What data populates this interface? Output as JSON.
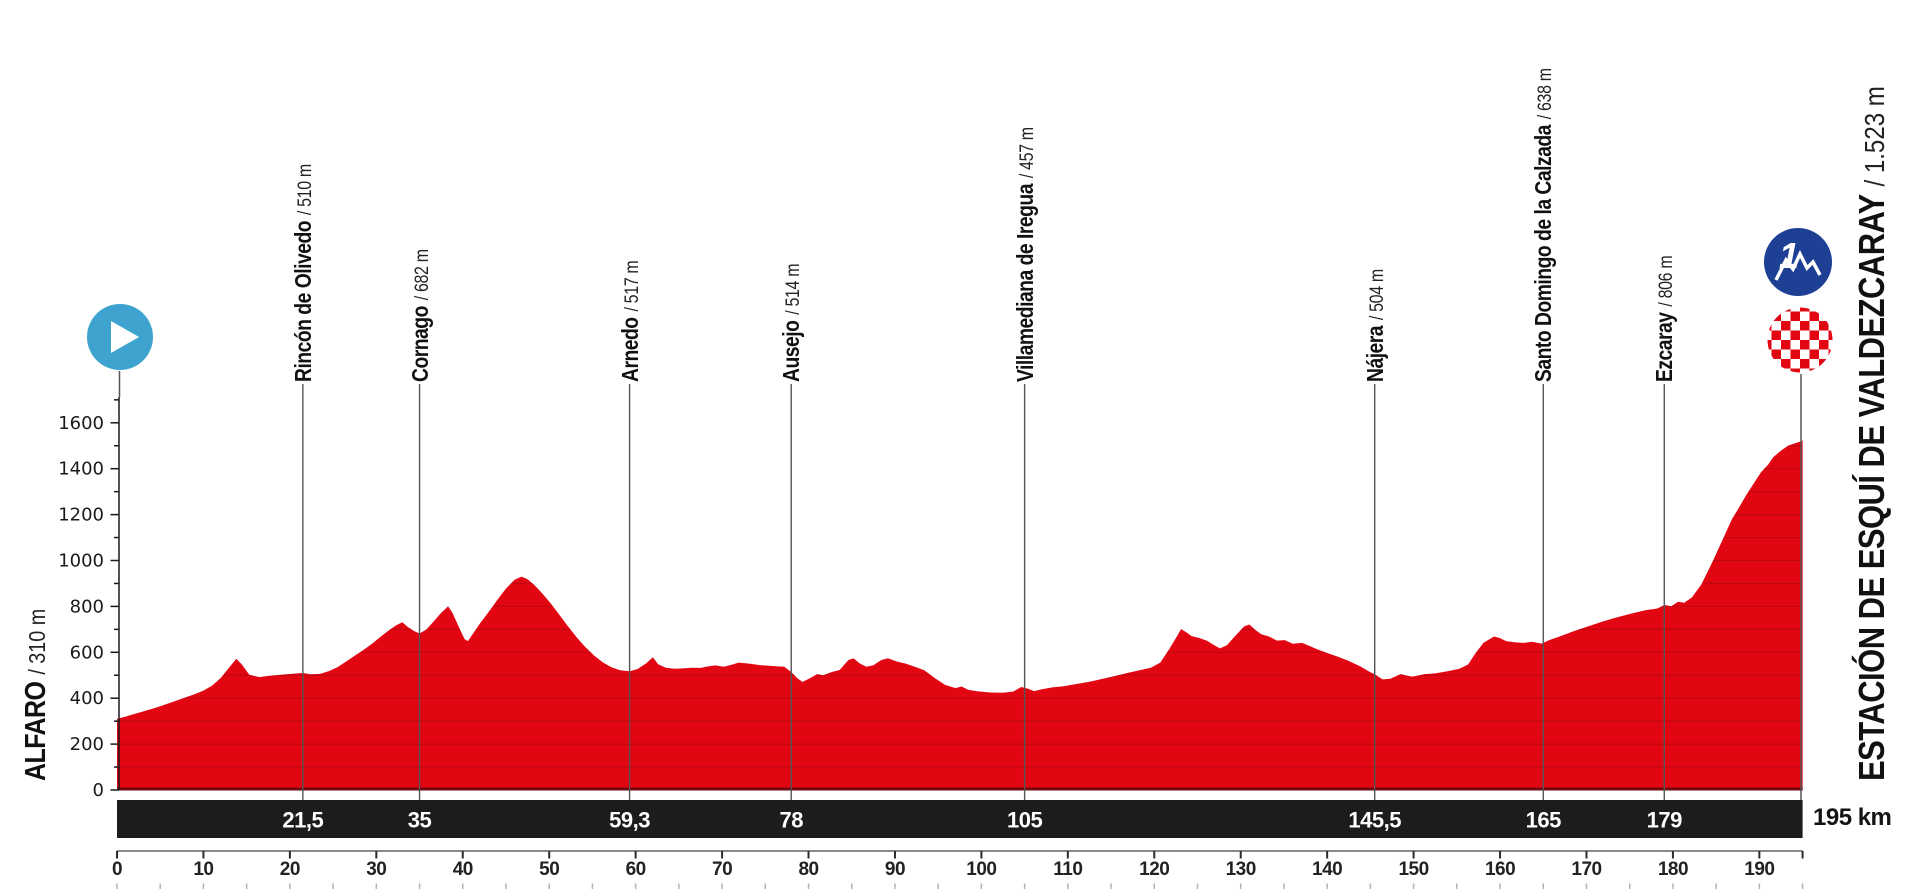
{
  "colors": {
    "profile_red": "#e20613",
    "grid_red": "#9c0712",
    "baseline_red": "#70080d",
    "bar_black": "#1d1b1b",
    "axis_gray": "#8a8a8a",
    "tick_dark": "#2b2b2b",
    "marker_line": "#555555",
    "play_blue": "#3ea4cf",
    "cat1_blue": "#1d3f94",
    "checker_red": "#e20613",
    "text_black": "#1a1a1a"
  },
  "icons": {
    "start": "play-icon",
    "climb_finish": "category-1-climb-icon",
    "finish": "finish-checkered-flag-icon"
  },
  "chart_data": {
    "type": "area",
    "title": "Stage elevation profile",
    "start_label": {
      "name": "ALFARO",
      "altitude": "/ 310 m"
    },
    "finish_label": {
      "name": "ESTACIÓN DE ESQUÍ DE VALDEZCARAY",
      "altitude": "/ 1.523 m"
    },
    "total_distance_label": "195 km",
    "climb_category": "1",
    "xlabel": "",
    "ylabel": "",
    "xlim": [
      0,
      195
    ],
    "ylim": [
      0,
      1700
    ],
    "grid": "horizontal-100m-inside-fill",
    "legend_position": "none",
    "x_tick_labels": [
      "0",
      "10",
      "20",
      "30",
      "40",
      "50",
      "60",
      "70",
      "80",
      "90",
      "100",
      "110",
      "120",
      "130",
      "140",
      "150",
      "160",
      "170",
      "180",
      "190"
    ],
    "y_tick_labels": [
      "0",
      "200",
      "400",
      "600",
      "800",
      "1000",
      "1200",
      "1400",
      "1600"
    ],
    "y_minor_interval": 100,
    "x_bottom_minor_interval": 5,
    "waypoints": [
      {
        "name": "Rincón de Olivedo",
        "altitude": "/ 510 m",
        "km": 21.5,
        "km_label": "21,5"
      },
      {
        "name": "Cornago",
        "altitude": "/ 682 m",
        "km": 35,
        "km_label": "35"
      },
      {
        "name": "Arnedo",
        "altitude": "/ 517 m",
        "km": 59.3,
        "km_label": "59,3"
      },
      {
        "name": "Ausejo",
        "altitude": "/ 514 m",
        "km": 78,
        "km_label": "78"
      },
      {
        "name": "Villamediana de Iregua",
        "altitude": "/ 457 m",
        "km": 105,
        "km_label": "105"
      },
      {
        "name": "Nájera",
        "altitude": "/ 504 m",
        "km": 145.5,
        "km_label": "145,5"
      },
      {
        "name": "Santo Domingo de la Calzada",
        "altitude": "/ 638 m",
        "km": 165,
        "km_label": "165"
      },
      {
        "name": "Ezcaray",
        "altitude": "/ 806 m",
        "km": 179,
        "km_label": "179"
      }
    ],
    "profile_points": [
      [
        0,
        310
      ],
      [
        1,
        320
      ],
      [
        2,
        331
      ],
      [
        3,
        342
      ],
      [
        4,
        353
      ],
      [
        5,
        365
      ],
      [
        6,
        378
      ],
      [
        7,
        391
      ],
      [
        8,
        405
      ],
      [
        9,
        418
      ],
      [
        10,
        433
      ],
      [
        11,
        455
      ],
      [
        12,
        488
      ],
      [
        13,
        535
      ],
      [
        13.8,
        572
      ],
      [
        14.4,
        549
      ],
      [
        15.3,
        502
      ],
      [
        16.5,
        492
      ],
      [
        17.5,
        497
      ],
      [
        19,
        502
      ],
      [
        20.5,
        507
      ],
      [
        21.5,
        510
      ],
      [
        22.4,
        504
      ],
      [
        23.5,
        506
      ],
      [
        24.5,
        518
      ],
      [
        25.5,
        535
      ],
      [
        26.5,
        560
      ],
      [
        27.5,
        585
      ],
      [
        28.5,
        610
      ],
      [
        29.5,
        637
      ],
      [
        30.5,
        668
      ],
      [
        31.5,
        697
      ],
      [
        32.3,
        718
      ],
      [
        33,
        731
      ],
      [
        33.6,
        712
      ],
      [
        34.3,
        694
      ],
      [
        35,
        682
      ],
      [
        35.8,
        700
      ],
      [
        36.6,
        733
      ],
      [
        37.4,
        768
      ],
      [
        38.3,
        801
      ],
      [
        38.8,
        772
      ],
      [
        39.4,
        722
      ],
      [
        40.2,
        658
      ],
      [
        40.6,
        649
      ],
      [
        41.2,
        682
      ],
      [
        42,
        726
      ],
      [
        43,
        776
      ],
      [
        44,
        828
      ],
      [
        45,
        878
      ],
      [
        46,
        916
      ],
      [
        46.8,
        930
      ],
      [
        47.5,
        918
      ],
      [
        48.3,
        893
      ],
      [
        49.2,
        856
      ],
      [
        50.2,
        812
      ],
      [
        51.2,
        762
      ],
      [
        52.2,
        712
      ],
      [
        53.2,
        664
      ],
      [
        54.2,
        622
      ],
      [
        55.2,
        586
      ],
      [
        56.2,
        556
      ],
      [
        57.2,
        535
      ],
      [
        58.2,
        522
      ],
      [
        59.3,
        517
      ],
      [
        60.2,
        527
      ],
      [
        61.2,
        551
      ],
      [
        62,
        578
      ],
      [
        62.6,
        548
      ],
      [
        63.5,
        533
      ],
      [
        64.5,
        528
      ],
      [
        65.5,
        530
      ],
      [
        66.5,
        533
      ],
      [
        67.5,
        532
      ],
      [
        68.3,
        538
      ],
      [
        69.2,
        543
      ],
      [
        70.2,
        537
      ],
      [
        71.2,
        547
      ],
      [
        71.9,
        555
      ],
      [
        73,
        551
      ],
      [
        74.5,
        544
      ],
      [
        76,
        540
      ],
      [
        77.2,
        537
      ],
      [
        78,
        514
      ],
      [
        78.7,
        487
      ],
      [
        79.3,
        471
      ],
      [
        80.1,
        486
      ],
      [
        81,
        505
      ],
      [
        81.7,
        500
      ],
      [
        82.7,
        514
      ],
      [
        83.6,
        523
      ],
      [
        84.6,
        566
      ],
      [
        85.2,
        574
      ],
      [
        85.9,
        552
      ],
      [
        86.7,
        537
      ],
      [
        87.5,
        544
      ],
      [
        88.4,
        566
      ],
      [
        89.2,
        574
      ],
      [
        90.2,
        560
      ],
      [
        91.2,
        551
      ],
      [
        92.3,
        537
      ],
      [
        93.4,
        522
      ],
      [
        94.6,
        488
      ],
      [
        95.8,
        458
      ],
      [
        97,
        444
      ],
      [
        97.7,
        451
      ],
      [
        98.5,
        436
      ],
      [
        99.5,
        430
      ],
      [
        101,
        425
      ],
      [
        102.5,
        424
      ],
      [
        103.7,
        429
      ],
      [
        104.6,
        449
      ],
      [
        105.4,
        441
      ],
      [
        106.1,
        431
      ],
      [
        107,
        439
      ],
      [
        108.2,
        447
      ],
      [
        109.5,
        452
      ],
      [
        111,
        462
      ],
      [
        112.5,
        472
      ],
      [
        114,
        484
      ],
      [
        115.5,
        497
      ],
      [
        117,
        511
      ],
      [
        118.3,
        522
      ],
      [
        119.6,
        533
      ],
      [
        120.7,
        555
      ],
      [
        121.8,
        618
      ],
      [
        122.6,
        669
      ],
      [
        123.1,
        701
      ],
      [
        123.7,
        687
      ],
      [
        124.3,
        671
      ],
      [
        125.3,
        661
      ],
      [
        126.1,
        650
      ],
      [
        126.9,
        632
      ],
      [
        127.6,
        617
      ],
      [
        128.4,
        631
      ],
      [
        129.3,
        669
      ],
      [
        130.4,
        713
      ],
      [
        131,
        721
      ],
      [
        131.7,
        697
      ],
      [
        132.4,
        678
      ],
      [
        133.2,
        670
      ],
      [
        134.2,
        651
      ],
      [
        135.1,
        653
      ],
      [
        136,
        637
      ],
      [
        137.1,
        641
      ],
      [
        138,
        627
      ],
      [
        138.8,
        614
      ],
      [
        140,
        597
      ],
      [
        141.3,
        580
      ],
      [
        142.5,
        562
      ],
      [
        143.8,
        539
      ],
      [
        145,
        513
      ],
      [
        145.5,
        504
      ],
      [
        146.4,
        482
      ],
      [
        147.3,
        485
      ],
      [
        148.5,
        505
      ],
      [
        149.3,
        498
      ],
      [
        149.9,
        494
      ],
      [
        151.3,
        505
      ],
      [
        152.5,
        508
      ],
      [
        154,
        518
      ],
      [
        155.3,
        528
      ],
      [
        156.3,
        547
      ],
      [
        157.2,
        598
      ],
      [
        158.1,
        642
      ],
      [
        159.3,
        669
      ],
      [
        160,
        662
      ],
      [
        160.7,
        649
      ],
      [
        161.8,
        643
      ],
      [
        162.7,
        641
      ],
      [
        163.7,
        646
      ],
      [
        164.8,
        638
      ],
      [
        165.8,
        655
      ],
      [
        166.6,
        665
      ],
      [
        168.4,
        690
      ],
      [
        170.1,
        712
      ],
      [
        171.8,
        733
      ],
      [
        173.4,
        751
      ],
      [
        175.1,
        768
      ],
      [
        176.8,
        783
      ],
      [
        178.2,
        791
      ],
      [
        179,
        806
      ],
      [
        179.8,
        801
      ],
      [
        180.6,
        820
      ],
      [
        181.3,
        816
      ],
      [
        182.2,
        839
      ],
      [
        183.3,
        896
      ],
      [
        184.6,
        996
      ],
      [
        185.9,
        1103
      ],
      [
        186.8,
        1178
      ],
      [
        187.6,
        1228
      ],
      [
        188.4,
        1280
      ],
      [
        189.2,
        1327
      ],
      [
        190.2,
        1385
      ],
      [
        191,
        1417
      ],
      [
        191.6,
        1450
      ],
      [
        192.5,
        1479
      ],
      [
        193.3,
        1500
      ],
      [
        194.2,
        1512
      ],
      [
        194.7,
        1518
      ],
      [
        195,
        1523
      ]
    ]
  }
}
